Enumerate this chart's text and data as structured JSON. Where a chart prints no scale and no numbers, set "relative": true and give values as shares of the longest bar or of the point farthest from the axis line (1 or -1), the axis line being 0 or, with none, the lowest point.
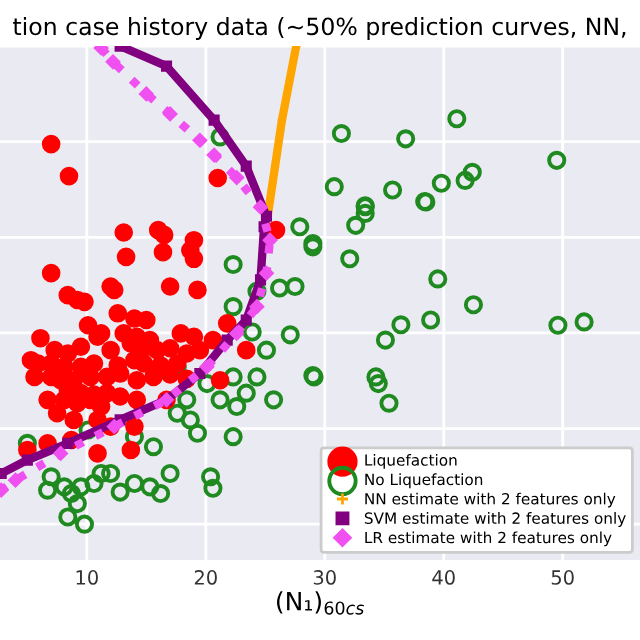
{
  "chart_data": {
    "type": "scatter",
    "title": "tion case history data (~50% prediction curves, NN,",
    "xlabel": "(N₁)$_{60cs}$",
    "relative": true,
    "xlim": [
      2.7,
      56.5
    ],
    "xticks": [
      10,
      20,
      30,
      40,
      50
    ],
    "tick_labels": "x",
    "grid": true,
    "legend": "bottom right",
    "series": [
      {
        "name": "Liquefaction",
        "marker": "circle",
        "color": "#ff0000",
        "x": [
          13.1,
          16.0,
          16.5,
          19.0,
          18.7,
          13.3,
          16.4,
          7.0,
          19.0,
          12.0,
          12.3,
          17.0,
          19.3,
          8.4,
          9.2,
          9.8,
          12.6,
          14.0,
          15.0,
          10.1,
          11.2,
          10.9,
          6.1,
          13.1,
          14.2,
          15.3,
          17.9,
          19.0,
          20.6,
          21.8,
          23.4,
          7.3,
          8.4,
          9.5,
          12.0,
          13.7,
          14.8,
          15.9,
          17.0,
          18.4,
          19.5,
          5.3,
          5.9,
          7.0,
          8.1,
          9.5,
          10.6,
          12.6,
          14.0,
          14.8,
          16.2,
          17.6,
          5.6,
          7.0,
          7.8,
          8.9,
          10.3,
          11.7,
          12.8,
          14.2,
          15.6,
          17.0,
          18.4,
          8.4,
          9.5,
          10.6,
          11.7,
          12.8,
          6.7,
          8.1,
          9.2,
          10.3,
          11.2,
          14.2,
          16.7,
          7.5,
          8.9,
          10.9,
          12.0,
          14.0,
          8.7,
          6.7,
          5.0,
          10.9,
          13.7,
          25.9,
          21.2,
          7.0,
          8.5,
          21.0
        ],
        "values": [
          0.61,
          0.615,
          0.605,
          0.594,
          0.573,
          0.559,
          0.569,
          0.525,
          0.555,
          0.497,
          0.49,
          0.497,
          0.49,
          0.479,
          0.469,
          0.465,
          0.441,
          0.43,
          0.427,
          0.416,
          0.399,
          0.392,
          0.389,
          0.399,
          0.392,
          0.385,
          0.399,
          0.392,
          0.385,
          0.42,
          0.364,
          0.364,
          0.357,
          0.371,
          0.364,
          0.378,
          0.368,
          0.364,
          0.368,
          0.357,
          0.364,
          0.343,
          0.336,
          0.336,
          0.329,
          0.329,
          0.336,
          0.332,
          0.343,
          0.336,
          0.332,
          0.336,
          0.308,
          0.308,
          0.301,
          0.301,
          0.308,
          0.308,
          0.315,
          0.301,
          0.308,
          0.313,
          0.304,
          0.28,
          0.274,
          0.271,
          0.274,
          0.267,
          0.26,
          0.26,
          0.253,
          0.26,
          0.246,
          0.26,
          0.26,
          0.232,
          0.218,
          0.218,
          0.204,
          0.204,
          0.176,
          0.169,
          0.155,
          0.148,
          0.155,
          0.615,
          0.301,
          0.795,
          0.728,
          0.724
        ]
      },
      {
        "name": "No Liquefaction",
        "marker": "circle",
        "color": "#1f8a1f",
        "x": [
          27.9,
          29.0,
          22.3,
          26.2,
          27.5,
          24.3,
          22.3,
          27.1,
          23.9,
          25.1,
          29.1,
          22.3,
          24.3,
          23.4,
          21.2,
          22.6,
          25.7,
          17.6,
          20.1,
          18.4,
          17.6,
          19.3,
          18.7,
          15.6,
          22.3,
          14.0,
          10.1,
          5.0,
          6.7,
          8.1,
          9.5,
          10.6,
          12.0,
          12.8,
          14.0,
          15.3,
          16.2,
          17.0,
          20.4,
          20.6,
          8.4,
          9.8,
          9.2,
          11.2,
          7.0,
          8.7,
          33.4,
          38.5,
          32.6,
          29.0,
          32.1,
          39.5,
          42.5,
          38.9,
          36.4,
          35.1,
          49.6,
          51.8,
          29.0,
          34.3,
          34.5,
          35.4,
          21.2,
          31.4,
          36.8,
          41.1,
          49.5,
          30.8,
          35.7,
          39.8,
          41.8,
          42.4,
          38.4,
          33.4,
          33.4
        ],
        "values": [
          0.622,
          0.58,
          0.543,
          0.494,
          0.497,
          0.487,
          0.455,
          0.396,
          0.402,
          0.364,
          0.308,
          0.308,
          0.308,
          0.274,
          0.26,
          0.246,
          0.26,
          0.329,
          0.294,
          0.26,
          0.232,
          0.19,
          0.218,
          0.162,
          0.183,
          0.183,
          0.197,
          0.169,
          0.071,
          0.078,
          0.078,
          0.085,
          0.106,
          0.067,
          0.085,
          0.078,
          0.064,
          0.106,
          0.099,
          0.075,
          0.015,
          0,
          0.043,
          0.106,
          0.099,
          0.064,
          0.664,
          0.674,
          0.625,
          0.587,
          0.555,
          0.513,
          0.459,
          0.427,
          0.417,
          0.385,
          0.416,
          0.423,
          0.311,
          0.308,
          0.294,
          0.253,
          0.81,
          0.817,
          0.806,
          0.848,
          0.761,
          0.706,
          0.699,
          0.713,
          0.719,
          0.736,
          0.675,
          0.666,
          0.65
        ]
      },
      {
        "name": "NN estimate with 2 features only",
        "type": "line",
        "marker": "cross",
        "line_style": "solid",
        "color": "#ffa500",
        "x": [
          27.6,
          26.4,
          25.2
        ],
        "values": [
          1.0,
          0.845,
          0.644
        ]
      },
      {
        "name": "SVM estimate with 2 features only",
        "type": "line",
        "marker": "square",
        "line_style": "solid",
        "color": "#800080",
        "x": [
          12.8,
          16.7,
          20.7,
          23.4,
          25.1,
          24.9,
          24.6,
          23.4,
          21.8,
          19.5,
          16.7,
          12.8,
          8.4,
          5.0,
          2.8
        ],
        "values": [
          1.0,
          0.958,
          0.845,
          0.749,
          0.644,
          0.622,
          0.511,
          0.427,
          0.385,
          0.315,
          0.26,
          0.218,
          0.169,
          0.134,
          0.106
        ]
      },
      {
        "name": "LR estimate with 2 features only",
        "type": "line",
        "marker": "diamond",
        "line_style": "dotted",
        "color": "#f050f0",
        "x": [
          11.2,
          12.2,
          15.0,
          17.0,
          19.5,
          20.7,
          22.6,
          24.6,
          25.4,
          25.1,
          24.3,
          22.6,
          20.1,
          16.7,
          12.3,
          7.8,
          4.0,
          2.8
        ],
        "values": [
          0.996,
          0.967,
          0.9,
          0.858,
          0.803,
          0.772,
          0.725,
          0.663,
          0.594,
          0.525,
          0.455,
          0.399,
          0.329,
          0.26,
          0.204,
          0.148,
          0.092,
          0.071
        ]
      }
    ]
  }
}
